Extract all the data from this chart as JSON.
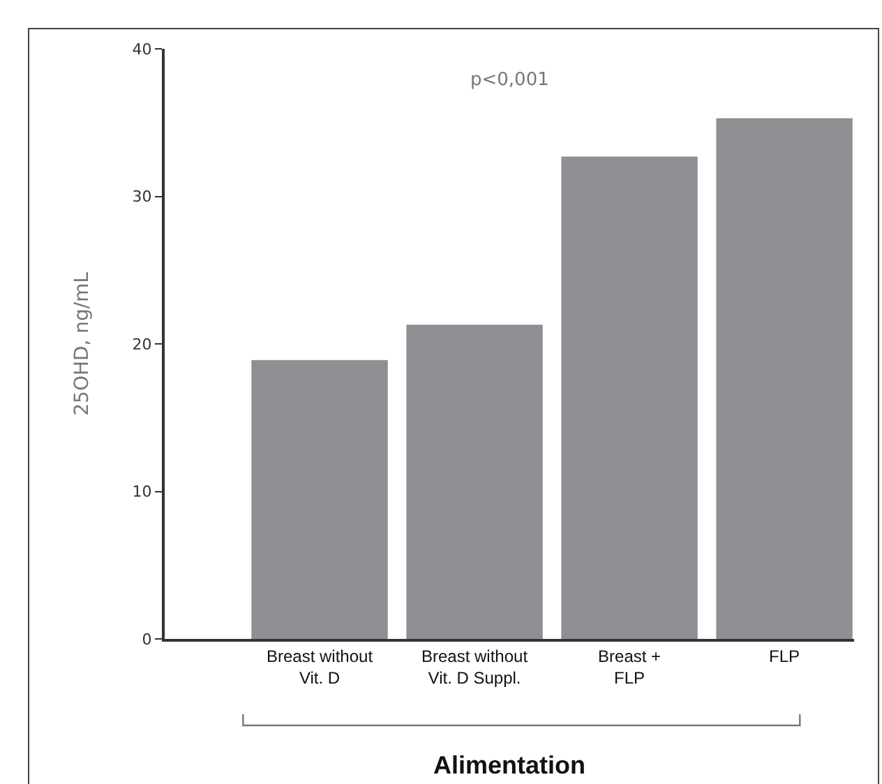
{
  "chart_data": {
    "type": "bar",
    "xlabel": "Alimentation",
    "ylabel": "25OHD, ng/mL",
    "categories": [
      "Breast without\nVit. D",
      "Breast without\nVit. D Suppl.",
      "Breast +\nFLP",
      "FLP"
    ],
    "values": [
      18.9,
      21.3,
      32.7,
      35.3
    ],
    "color": "#8e8f93",
    "ylim": [
      0,
      40
    ],
    "yticks": [
      0,
      10,
      20,
      30,
      40
    ],
    "annotations": [
      "p<0,001"
    ]
  }
}
